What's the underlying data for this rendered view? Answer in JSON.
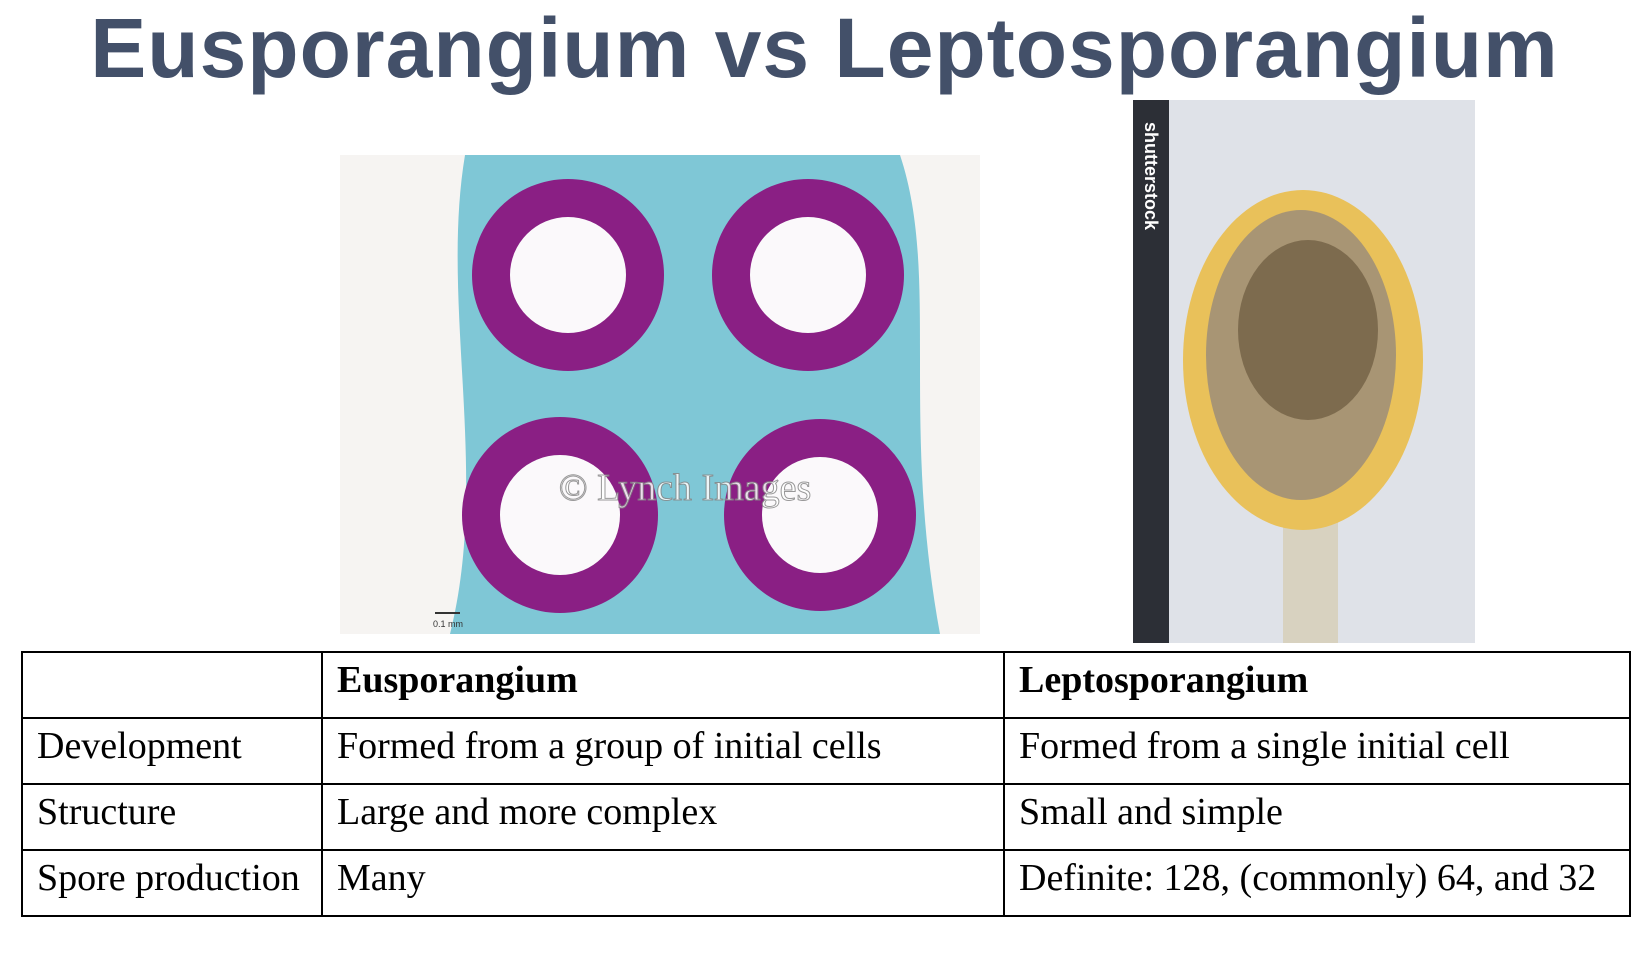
{
  "title": "Eusporangium vs Leptosporangium",
  "images": [
    {
      "watermark": "© Lynch Images",
      "scale_label": "0.1 mm"
    },
    {
      "watermark": "shutterstock"
    }
  ],
  "table": {
    "header": [
      "Eusporangium",
      "Leptosporangium"
    ],
    "rows": [
      [
        "Development",
        "Formed from a group of initial cells",
        "Formed from a single initial cell"
      ],
      [
        "Structure",
        "Large and more complex",
        "Small and simple"
      ],
      [
        "Spore production",
        "Many",
        "Definite: 128, (commonly) 64, and 32"
      ]
    ]
  }
}
